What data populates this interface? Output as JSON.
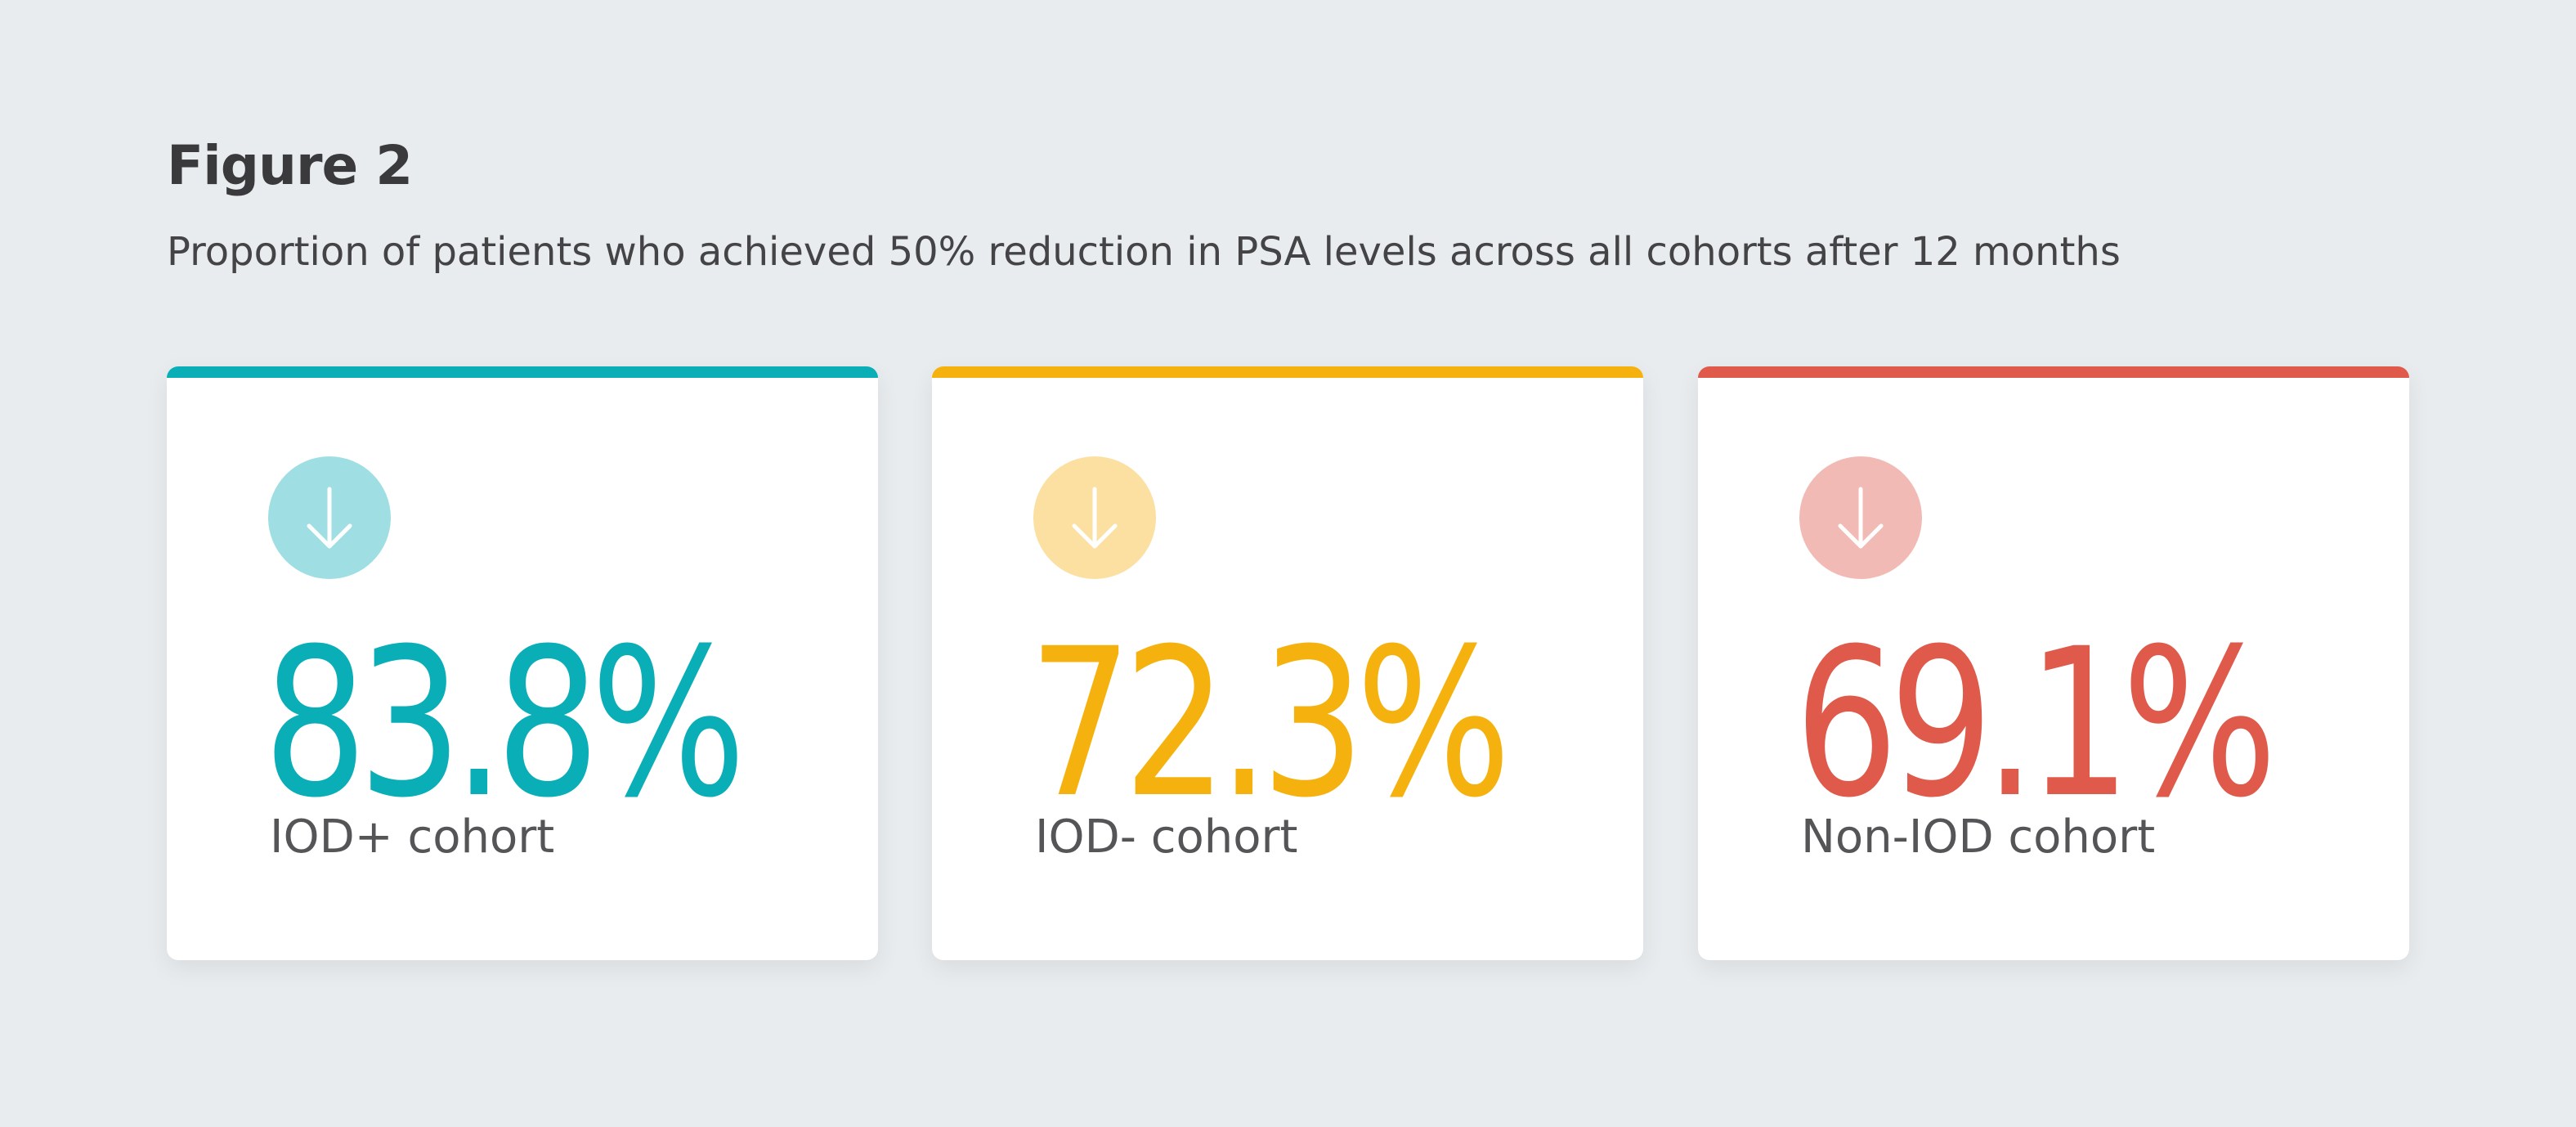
{
  "chart_data": {
    "type": "table",
    "title": "Figure 2",
    "subtitle": "Proportion of patients who achieved 50% reduction in PSA levels across all cohorts after 12 months",
    "categories": [
      "IOD+ cohort",
      "IOD- cohort",
      "Non-IOD cohort"
    ],
    "values": [
      83.8,
      72.3,
      69.1
    ],
    "unit": "%",
    "series": [
      {
        "display": "83.8%",
        "color": "#0aaeb7",
        "bar_color": "#0aaeb7",
        "icon_bg": "#9fdfe3",
        "icon": "arrow-down-icon"
      },
      {
        "display": "72.3%",
        "color": "#f5b20f",
        "bar_color": "#f5b20f",
        "icon_bg": "#fbe0a2",
        "icon": "arrow-down-icon"
      },
      {
        "display": "69.1%",
        "color": "#df5a4b",
        "bar_color": "#df5a4b",
        "icon_bg": "#f2bab4",
        "icon": "arrow-down-icon"
      }
    ]
  }
}
